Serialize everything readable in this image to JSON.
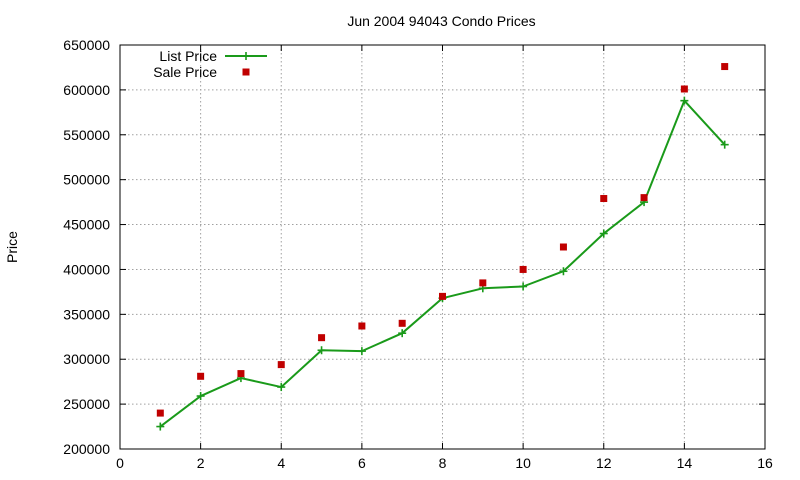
{
  "chart_data": {
    "type": "line",
    "title": "Jun 2004 94043 Condo Prices",
    "xlabel": "",
    "ylabel": "Price",
    "xlim": [
      0,
      16
    ],
    "ylim": [
      200000,
      650000
    ],
    "x_ticks": [
      "0",
      "2",
      "4",
      "6",
      "8",
      "10",
      "12",
      "14",
      "16"
    ],
    "y_ticks": [
      "200000",
      "250000",
      "300000",
      "350000",
      "400000",
      "450000",
      "500000",
      "550000",
      "600000",
      "650000"
    ],
    "grid": true,
    "legend_position": "top-left",
    "x": [
      1,
      2,
      3,
      4,
      5,
      6,
      7,
      8,
      9,
      10,
      11,
      12,
      13,
      14,
      15
    ],
    "series": [
      {
        "name": "List Price",
        "style": "line-with-plus-markers",
        "color": "#1a9a1a",
        "values": [
          225000,
          259000,
          279000,
          269000,
          310000,
          309000,
          329000,
          368000,
          379000,
          381000,
          398000,
          440000,
          475000,
          588000,
          539000
        ]
      },
      {
        "name": "Sale Price",
        "style": "square-markers",
        "color": "#c00000",
        "values": [
          240000,
          281000,
          284000,
          294000,
          324000,
          337000,
          340000,
          370000,
          385000,
          400000,
          425000,
          479000,
          480000,
          601000,
          626000
        ]
      }
    ]
  }
}
